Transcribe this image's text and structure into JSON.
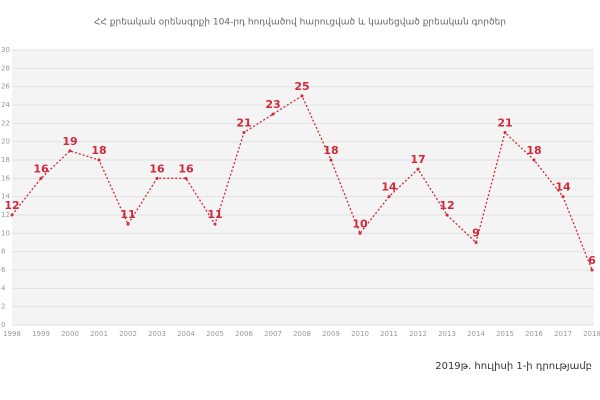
{
  "chart_data": {
    "type": "line",
    "title": "ՀՀ քրեական օրենսգրքի 104-րդ հոդվածով հարուցված և կասեցված քրեական գործեր",
    "note": "2019թ. հուլիսի 1-ի դրությամբ",
    "x": [
      1998,
      1999,
      2000,
      2001,
      2002,
      2003,
      2004,
      2005,
      2006,
      2007,
      2008,
      2009,
      2010,
      2011,
      2012,
      2013,
      2014,
      2015,
      2016,
      2017,
      2018
    ],
    "values": [
      12,
      16,
      19,
      18,
      11,
      16,
      16,
      11,
      21,
      23,
      25,
      18,
      10,
      14,
      17,
      12,
      9,
      21,
      18,
      14,
      6
    ],
    "color": "#d0293b",
    "xlim": [
      1998,
      2018
    ],
    "ylim": [
      0,
      30
    ],
    "yticks": [
      0,
      2,
      4,
      6,
      8,
      10,
      12,
      14,
      16,
      18,
      20,
      22,
      24,
      26,
      28,
      30
    ],
    "grid": true
  }
}
